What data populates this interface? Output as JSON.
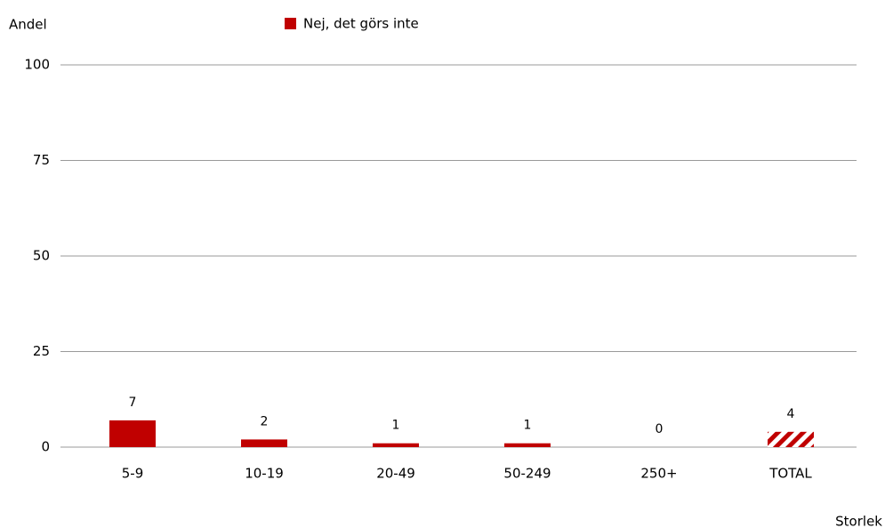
{
  "chart_data": {
    "type": "bar",
    "y_axis_label": "Andel",
    "x_axis_label": "Storlek",
    "categories": [
      "5-9",
      "10-19",
      "20-49",
      "50-249",
      "250+",
      "TOTAL"
    ],
    "series": [
      {
        "name": "Nej, det görs inte",
        "color": "#c00000",
        "values": [
          7,
          2,
          1,
          1,
          0,
          4
        ],
        "hatched": [
          false,
          false,
          false,
          false,
          false,
          true
        ]
      }
    ],
    "ylim": [
      0,
      100
    ],
    "yticks": [
      0,
      25,
      50,
      75,
      100
    ],
    "grid": true,
    "legend": "top"
  }
}
